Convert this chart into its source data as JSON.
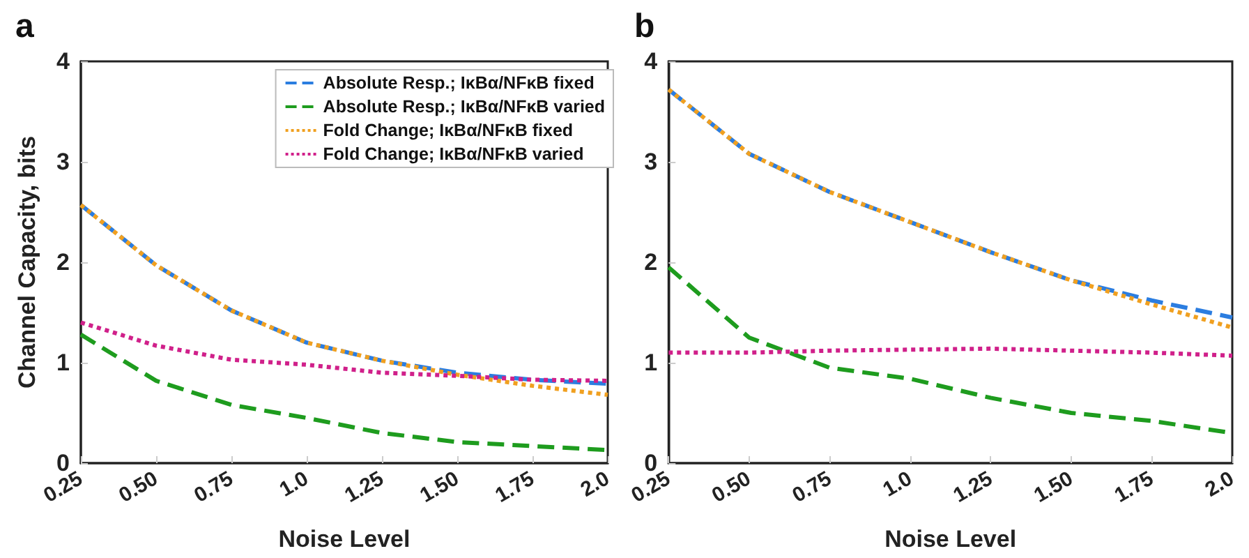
{
  "chart_data": [
    {
      "type": "line",
      "title": "a",
      "xlabel": "Noise Level",
      "ylabel": "Channel Capacity, bits",
      "x": [
        0.25,
        0.5,
        0.75,
        1.0,
        1.25,
        1.5,
        1.75,
        2.0
      ],
      "xlim": [
        0.25,
        2.0
      ],
      "xticks": [
        0.25,
        {
          "value": 0.5,
          "label": "0.50"
        },
        0.75,
        {
          "value": 1,
          "label": "1.0"
        },
        1.25,
        {
          "value": 1.5,
          "label": "1.50"
        },
        1.75,
        {
          "value": 2,
          "label": "2.0"
        }
      ],
      "ylim": [
        0,
        4
      ],
      "yticks": [
        0,
        1,
        2,
        3,
        4
      ],
      "grid": false,
      "legend": "top right",
      "marker": "none",
      "series": [
        {
          "name": "Absolute Resp.; IκBα/NFκB fixed",
          "color": "#2b7de0",
          "line_style": "dashed",
          "values": [
            2.57,
            1.97,
            1.52,
            1.2,
            1.02,
            0.9,
            0.83,
            0.79
          ]
        },
        {
          "name": "Absolute Resp.; IκBα/NFκB varied",
          "color": "#1e9c1e",
          "line_style": "dashed",
          "values": [
            1.28,
            0.82,
            0.58,
            0.45,
            0.3,
            0.21,
            0.17,
            0.13
          ]
        },
        {
          "name": "Fold Change; IκBα/NFκB fixed",
          "color": "#f0a020",
          "line_style": "dotted",
          "values": [
            2.57,
            1.97,
            1.52,
            1.2,
            1.02,
            0.88,
            0.77,
            0.68
          ]
        },
        {
          "name": "Fold Change; IκBα/NFκB varied",
          "color": "#d0208a",
          "line_style": "dotted",
          "values": [
            1.4,
            1.17,
            1.03,
            0.98,
            0.9,
            0.87,
            0.83,
            0.82
          ]
        }
      ]
    },
    {
      "type": "line",
      "title": "b",
      "xlabel": "Noise Level",
      "x": [
        0.25,
        0.5,
        0.75,
        1.0,
        1.25,
        1.5,
        1.75,
        2.0
      ],
      "xlim": [
        0.25,
        2.0
      ],
      "xticks": [
        0.25,
        {
          "value": 0.5,
          "label": "0.50"
        },
        0.75,
        {
          "value": 1,
          "label": "1.0"
        },
        1.25,
        {
          "value": 1.5,
          "label": "1.50"
        },
        1.75,
        {
          "value": 2,
          "label": "2.0"
        }
      ],
      "ylim": [
        0,
        4
      ],
      "yticks": [
        0,
        1,
        2,
        3,
        4
      ],
      "grid": false,
      "marker": "none",
      "series": [
        {
          "color": "#2b7de0",
          "line_style": "dashed",
          "values": [
            3.72,
            3.08,
            2.7,
            2.4,
            2.1,
            1.82,
            1.62,
            1.45
          ]
        },
        {
          "color": "#1e9c1e",
          "line_style": "dashed",
          "values": [
            1.95,
            1.25,
            0.95,
            0.84,
            0.65,
            0.5,
            0.42,
            0.3
          ]
        },
        {
          "color": "#f0a020",
          "line_style": "dotted",
          "values": [
            3.72,
            3.08,
            2.7,
            2.4,
            2.1,
            1.82,
            1.58,
            1.35
          ]
        },
        {
          "color": "#d0208a",
          "line_style": "dotted",
          "values": [
            1.1,
            1.1,
            1.12,
            1.13,
            1.14,
            1.12,
            1.1,
            1.07
          ]
        }
      ]
    }
  ]
}
